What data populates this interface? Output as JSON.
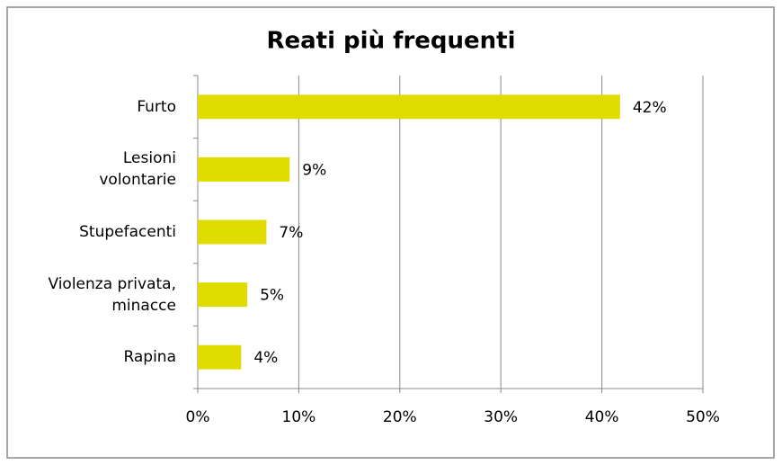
{
  "chart_data": {
    "type": "barh",
    "title": "Reati più frequenti",
    "categories": [
      "Furto",
      "Lesioni volontarie",
      "Stupefacenti",
      "Violenza privata, minacce",
      "Rapina"
    ],
    "values": [
      41.8,
      9.1,
      6.8,
      4.9,
      4.3
    ],
    "value_labels": [
      "42%",
      "9%",
      "7%",
      "5%",
      "4%"
    ],
    "color": "#e0dc00",
    "xlim": [
      0,
      50
    ],
    "xticks": [
      {
        "value": 0,
        "label": "0%"
      },
      {
        "value": 10,
        "label": "10%"
      },
      {
        "value": 20,
        "label": "20%"
      },
      {
        "value": 30,
        "label": "30%"
      },
      {
        "value": 40,
        "label": "40%"
      },
      {
        "value": 50,
        "label": "50%"
      }
    ],
    "grid": true
  }
}
